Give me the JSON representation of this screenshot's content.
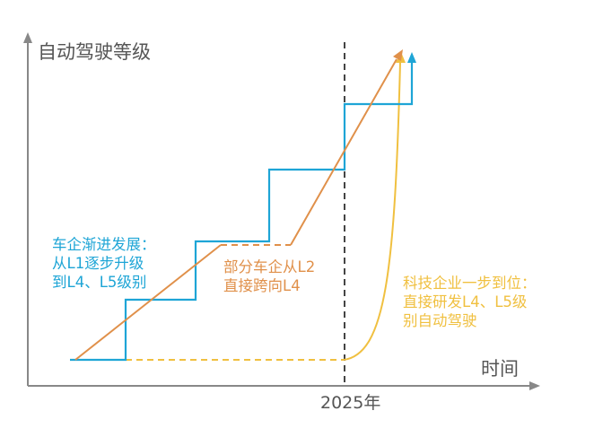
{
  "axes": {
    "y_title": "自动驾驶等级",
    "x_title": "时间",
    "x_tick": "2025年"
  },
  "annotations": {
    "car_makers": [
      "车企渐进发展：",
      "从L1逐步升级",
      "到L4、L5级别"
    ],
    "partial_car_makers": [
      "部分车企从L2",
      "直接跨向L4"
    ],
    "tech_companies": [
      "科技企业一步到位：",
      "直接研发L4、L5级",
      "别自动驾驶"
    ]
  },
  "colors": {
    "axis": "#888888",
    "car_makers": "#1ea5d6",
    "partial_car_makers": "#e0904a",
    "tech_companies": "#f0c040",
    "marker_2025": "#444444"
  }
}
